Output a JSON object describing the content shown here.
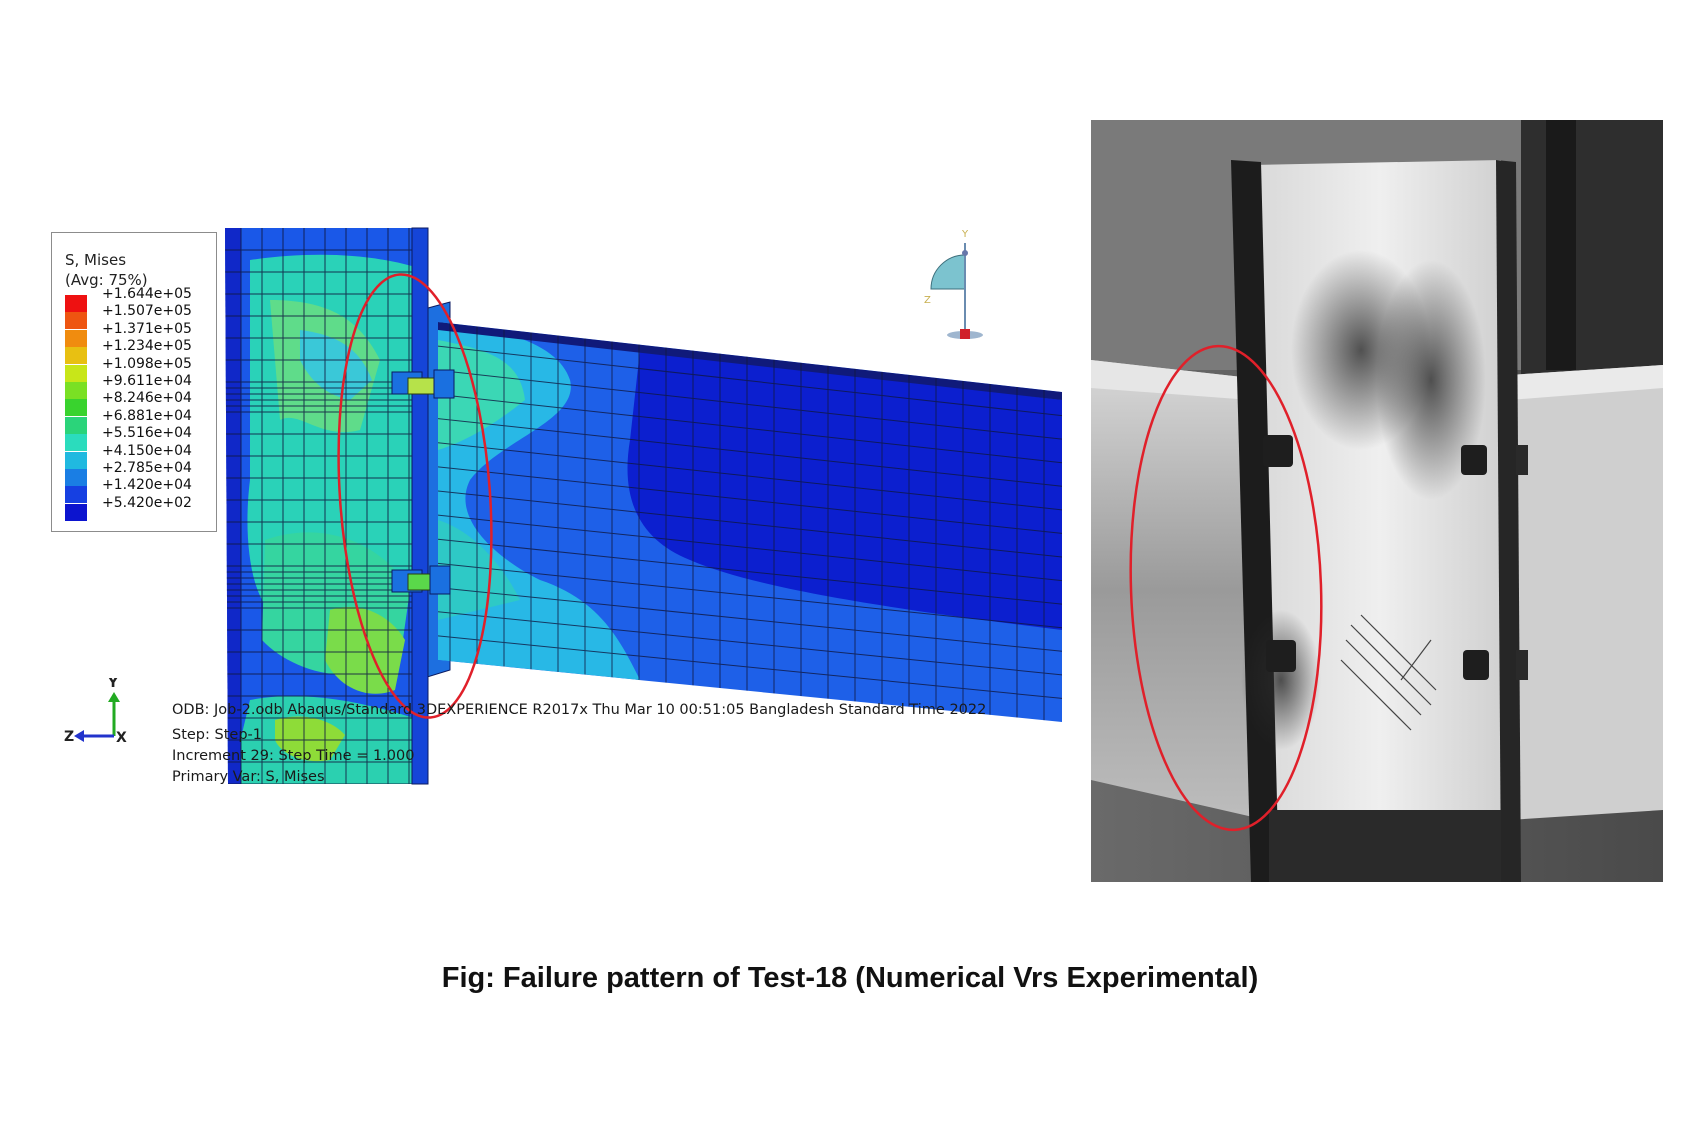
{
  "legend": {
    "title": "S, Mises",
    "subtitle": "(Avg: 75%)",
    "entries": [
      {
        "value": "+1.644e+05",
        "color": "#ee1111"
      },
      {
        "value": "+1.507e+05",
        "color": "#ee5511"
      },
      {
        "value": "+1.371e+05",
        "color": "#f08c0f"
      },
      {
        "value": "+1.234e+05",
        "color": "#e8c012"
      },
      {
        "value": "+1.098e+05",
        "color": "#c8e619"
      },
      {
        "value": "+9.611e+04",
        "color": "#7ae024"
      },
      {
        "value": "+8.246e+04",
        "color": "#39d32e"
      },
      {
        "value": "+6.881e+04",
        "color": "#2bd47a"
      },
      {
        "value": "+5.516e+04",
        "color": "#2bdcbd"
      },
      {
        "value": "+4.150e+04",
        "color": "#20b9e0"
      },
      {
        "value": "+2.785e+04",
        "color": "#1a7ee4"
      },
      {
        "value": "+1.420e+04",
        "color": "#1640e2"
      },
      {
        "value": "+5.420e+02",
        "color": "#0c14cf"
      }
    ]
  },
  "fea_info": {
    "line1": "ODB: Job-2.odb    Abaqus/Standard 3DEXPERIENCE R2017x    Thu Mar 10 00:51:05 Bangladesh Standard Time 2022",
    "line2": "Step: Step-1",
    "line3": "Increment     29: Step Time =    1.000",
    "line4": "Primary Var: S, Mises"
  },
  "triad": {
    "y": "Y",
    "z": "Z",
    "x": "X"
  },
  "view_triad": {
    "y": "Y",
    "z": "Z"
  },
  "caption": "Fig: Failure pattern of Test-18 (Numerical Vrs Experimental)",
  "colors": {
    "highlight_ellipse": "#e0202a",
    "mesh_line": "#101840"
  }
}
